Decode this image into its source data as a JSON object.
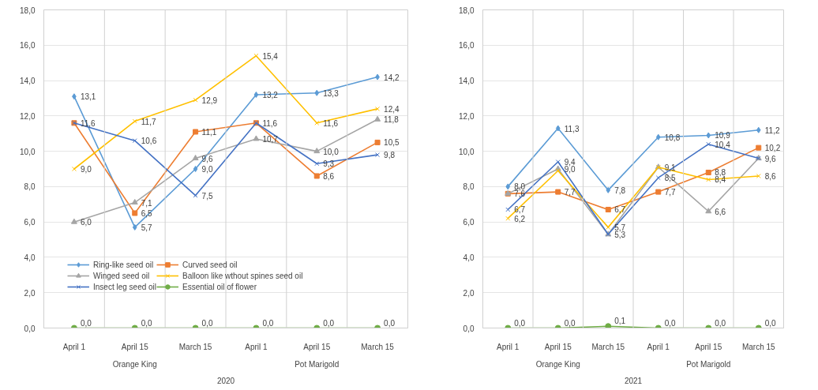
{
  "chart_data": [
    {
      "type": "line",
      "categories": [
        "April 1",
        "April 15",
        "March 15",
        "April 1",
        "April 15",
        "March 15"
      ],
      "annotations": [
        "Orange King",
        "Pot Marigold",
        "2020"
      ],
      "ylim": [
        0,
        18
      ],
      "yticks": [
        {
          "value": 0,
          "label": "0,0"
        },
        {
          "value": 2,
          "label": "2,0"
        },
        {
          "value": 4,
          "label": "4,0"
        },
        {
          "value": 6,
          "label": "6,0"
        },
        {
          "value": 8,
          "label": "8,0"
        },
        {
          "value": 10,
          "label": "10,0"
        },
        {
          "value": 12,
          "label": "12,0"
        },
        {
          "value": 14,
          "label": "14,0"
        },
        {
          "value": 16,
          "label": "16,0"
        },
        {
          "value": 18,
          "label": "18,0"
        }
      ],
      "grid": true,
      "legend": "bottom left",
      "series": [
        {
          "name": "Ring-like seed oil",
          "color": "#5b9bd5",
          "marker": "diamond",
          "values": [
            13.1,
            5.7,
            9.0,
            13.2,
            13.3,
            14.2
          ],
          "value_labels": [
            "13,1",
            "5,7",
            "9,0",
            "13,2",
            "13,3",
            "14,2"
          ]
        },
        {
          "name": "Curved seed oil",
          "color": "#ed7d31",
          "marker": "square",
          "values": [
            11.6,
            6.5,
            11.1,
            11.6,
            8.6,
            10.5
          ],
          "value_labels": [
            null,
            "6,5",
            "11,1",
            null,
            "8,6",
            "10,5"
          ]
        },
        {
          "name": "Winged seed oil",
          "color": "#a5a5a5",
          "marker": "triangle",
          "values": [
            6.0,
            7.1,
            9.6,
            10.7,
            10.0,
            11.8
          ],
          "value_labels": [
            "6,0",
            "7,1",
            "9,6",
            "10,7",
            "10,0",
            "11,8"
          ]
        },
        {
          "name": "Balloon like wthout spines seed oil",
          "color": "#ffc000",
          "marker": "cross",
          "values": [
            9.0,
            11.7,
            12.9,
            15.4,
            11.6,
            12.4
          ],
          "value_labels": [
            "9,0",
            "11,7",
            "12,9",
            "15,4",
            "11,6",
            "12,4"
          ]
        },
        {
          "name": "Insect leg seed oil",
          "color": "#4472c4",
          "marker": "cross",
          "values": [
            11.6,
            10.6,
            7.5,
            11.6,
            9.3,
            9.8
          ],
          "value_labels": [
            "11,6",
            "10,6",
            "7,5",
            "11,6",
            "9,3",
            "9,8"
          ]
        },
        {
          "name": "Essential oil of flower",
          "color": "#70ad47",
          "marker": "circle",
          "values": [
            0.0,
            0.0,
            0.0,
            0.0,
            0.0,
            0.0
          ],
          "value_labels": [
            "0,0",
            "0,0",
            "0,0",
            "0,0",
            "0,0",
            "0,0"
          ]
        }
      ]
    },
    {
      "type": "line",
      "categories": [
        "April 1",
        "April 15",
        "March 15",
        "April 1",
        "April 15",
        "March 15"
      ],
      "annotations": [
        "Orange King",
        "Pot Marigold",
        "2021"
      ],
      "ylim": [
        0,
        18
      ],
      "yticks": [
        {
          "value": 0,
          "label": "0,0"
        },
        {
          "value": 2,
          "label": "2,0"
        },
        {
          "value": 4,
          "label": "4,0"
        },
        {
          "value": 6,
          "label": "6,0"
        },
        {
          "value": 8,
          "label": "8,0"
        },
        {
          "value": 10,
          "label": "10,0"
        },
        {
          "value": 12,
          "label": "12,0"
        },
        {
          "value": 14,
          "label": "14,0"
        },
        {
          "value": 16,
          "label": "16,0"
        },
        {
          "value": 18,
          "label": "18,0"
        }
      ],
      "grid": true,
      "series": [
        {
          "color": "#5b9bd5",
          "marker": "diamond",
          "values": [
            8.0,
            11.3,
            7.8,
            10.8,
            10.9,
            11.2
          ],
          "value_labels": [
            "8,0",
            "11,3",
            "7,8",
            "10,8",
            "10,9",
            "11,2"
          ]
        },
        {
          "color": "#ed7d31",
          "marker": "square",
          "values": [
            7.6,
            7.7,
            6.7,
            7.7,
            8.8,
            10.2
          ],
          "value_labels": [
            "7,6",
            "7,7",
            "6,7",
            "7,7",
            "8,8",
            "10,2"
          ]
        },
        {
          "color": "#a5a5a5",
          "marker": "triangle",
          "values": [
            7.6,
            9.0,
            5.3,
            9.1,
            6.6,
            9.6
          ],
          "value_labels": [
            null,
            "9,0",
            null,
            null,
            "6,6",
            null
          ]
        },
        {
          "color": "#ffc000",
          "marker": "cross",
          "values": [
            6.2,
            8.9,
            5.7,
            9.1,
            8.4,
            8.6
          ],
          "value_labels": [
            "6,2",
            null,
            "5,7",
            "9,1",
            "8,4",
            "8,6"
          ]
        },
        {
          "color": "#4472c4",
          "marker": "cross",
          "values": [
            6.7,
            9.4,
            5.3,
            8.5,
            10.4,
            9.6
          ],
          "value_labels": [
            "6,7",
            "9,4",
            "5,3",
            "8,5",
            "10,4",
            "9,6"
          ]
        },
        {
          "color": "#70ad47",
          "marker": "circle",
          "values": [
            0.0,
            0.0,
            0.1,
            0.0,
            0.0,
            0.0
          ],
          "value_labels": [
            "0,0",
            "0,0",
            "0,1",
            "0,0",
            "0,0",
            "0,0"
          ]
        }
      ]
    }
  ]
}
